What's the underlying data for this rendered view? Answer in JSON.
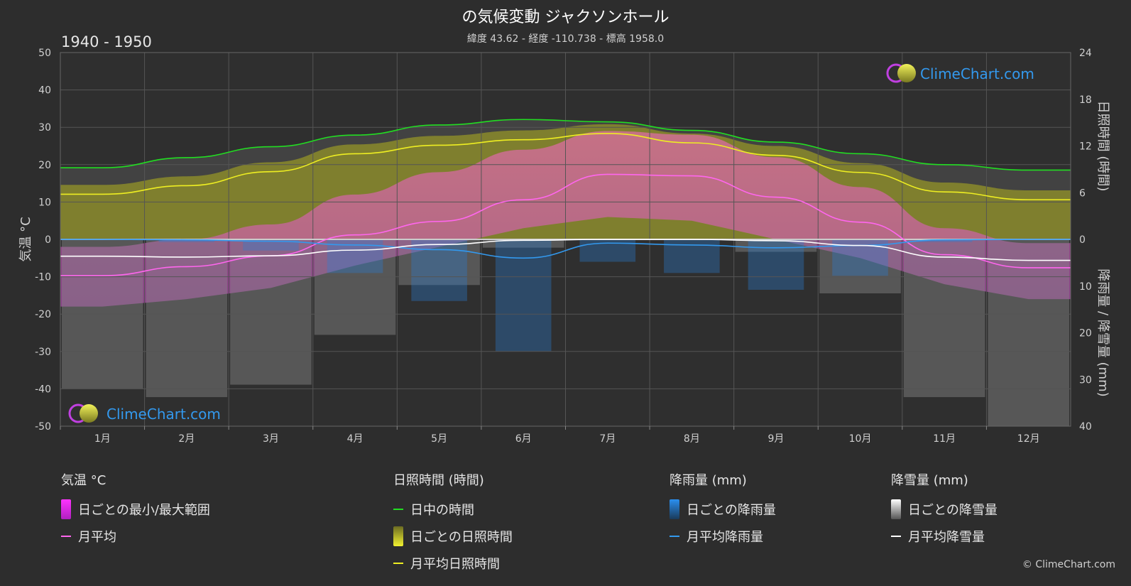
{
  "title": "の気候変動 ジャクソンホール",
  "subtitle": "緯度 43.62 - 経度 -110.738 - 標高 1958.0",
  "period": "1940 - 1950",
  "copyright": "© ClimeChart.com",
  "logo_text": "ClimeChart.com",
  "colors": {
    "background": "#2d2d2d",
    "daylight": "#22dd22",
    "sunshine_avg": "#eeee22",
    "temp_avg": "#ff66ee",
    "rain_avg": "#3399ee",
    "snow_avg": "#ffffff",
    "temp_range": "#e14fd6",
    "sunshine_daily": "#8a8a2a",
    "rain_daily": "#2a7fd4",
    "snow_daily": "#a0a0a0"
  },
  "legend": {
    "temperature": {
      "title": "気温 °C",
      "range": "日ごとの最小/最大範囲",
      "avg": "月平均"
    },
    "sunshine": {
      "title": "日照時間 (時間)",
      "daylight": "日中の時間",
      "daily": "日ごとの日照時間",
      "avg": "月平均日照時間"
    },
    "rain": {
      "title": "降雨量 (mm)",
      "daily": "日ごとの降雨量",
      "avg": "月平均降雨量"
    },
    "snow": {
      "title": "降雪量 (mm)",
      "daily": "日ごとの降雪量",
      "avg": "月平均降雪量"
    }
  },
  "chart_data": {
    "type": "line",
    "categories": [
      "1月",
      "2月",
      "3月",
      "4月",
      "5月",
      "6月",
      "7月",
      "8月",
      "9月",
      "10月",
      "11月",
      "12月"
    ],
    "left_axis": {
      "label": "気温 °C",
      "range": [
        -50,
        50
      ],
      "ticks": [
        "50",
        "40",
        "30",
        "20",
        "10",
        "0",
        "-10",
        "-20",
        "-30",
        "-40",
        "-50"
      ]
    },
    "right_axis_top": {
      "label": "日照時間 (時間)",
      "range": [
        0,
        24
      ],
      "ticks": [
        "24",
        "18",
        "12",
        "6",
        "0"
      ]
    },
    "right_axis_bottom": {
      "label": "降雨量 / 降雪量 (mm)",
      "range": [
        0,
        40
      ],
      "ticks": [
        "10",
        "20",
        "30",
        "40"
      ]
    },
    "series": [
      {
        "name": "日中の時間",
        "unit": "hours",
        "values": [
          9.2,
          10.5,
          11.9,
          13.4,
          14.7,
          15.4,
          15.1,
          14.0,
          12.5,
          11.0,
          9.6,
          8.9
        ]
      },
      {
        "name": "月平均日照時間",
        "unit": "hours",
        "values": [
          5.8,
          6.9,
          8.7,
          11.0,
          12.1,
          12.8,
          13.6,
          12.4,
          10.8,
          8.6,
          6.1,
          5.1
        ]
      },
      {
        "name": "月平均",
        "unit": "°C",
        "values": [
          -9.7,
          -7.3,
          -4.4,
          1.2,
          4.8,
          10.6,
          17.4,
          17.0,
          11.3,
          4.6,
          -4.1,
          -7.6
        ]
      },
      {
        "name": "月平均降雨量",
        "unit": "mm",
        "values": [
          0.0,
          0.1,
          0.4,
          1.2,
          2.2,
          4.0,
          0.8,
          1.2,
          1.8,
          1.3,
          0.1,
          0.0
        ]
      },
      {
        "name": "月平均降雪量",
        "unit": "mm",
        "values": [
          3.6,
          3.8,
          3.5,
          2.3,
          1.1,
          0.2,
          0.0,
          0.0,
          0.3,
          1.3,
          3.8,
          4.5
        ]
      }
    ],
    "daily_temp_range_max": [
      -2,
      0,
      4,
      12,
      18,
      24,
      29,
      28,
      22,
      14,
      3,
      -1
    ],
    "daily_temp_range_min": [
      -18,
      -16,
      -13,
      -7,
      -2,
      3,
      6,
      5,
      0,
      -5,
      -12,
      -16
    ],
    "grid": true
  }
}
